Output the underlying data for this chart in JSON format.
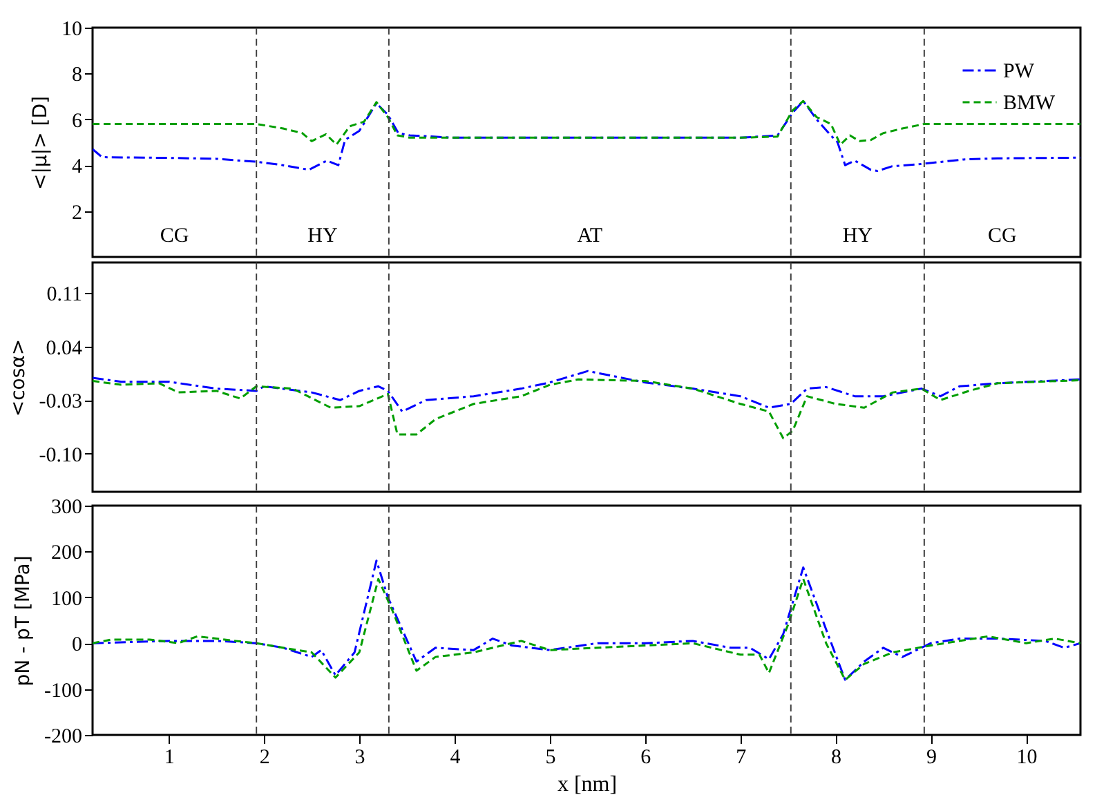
{
  "chart_data": [
    {
      "type": "line",
      "ylabel": "<|μ|> [D]",
      "xlim": [
        0.2,
        10.57
      ],
      "ylim": [
        0,
        10
      ],
      "xticks": [
        1,
        2,
        3,
        4,
        5,
        6,
        7,
        8,
        9,
        10
      ],
      "yticks": [
        2,
        4,
        6,
        8,
        10
      ],
      "tick_labels": "y",
      "grid": false,
      "legend": "top right",
      "series": [
        {
          "name": "PW",
          "color": "#0000ff",
          "line_style": "dashdot",
          "x": [
            0.2,
            0.3,
            1.0,
            1.5,
            1.92,
            2.2,
            2.47,
            2.66,
            2.78,
            2.85,
            3.0,
            3.18,
            3.3,
            3.41,
            3.53,
            4.0,
            5.0,
            6.0,
            7.0,
            7.39,
            7.55,
            7.66,
            7.8,
            7.95,
            8.02,
            8.1,
            8.2,
            8.37,
            8.44,
            8.59,
            8.89,
            9.34,
            9.7,
            10.57
          ],
          "values": [
            4.7,
            4.35,
            4.32,
            4.28,
            4.15,
            4.0,
            3.8,
            4.2,
            4.0,
            5.1,
            5.5,
            6.7,
            6.2,
            5.4,
            5.3,
            5.2,
            5.2,
            5.2,
            5.2,
            5.3,
            6.3,
            6.8,
            6.0,
            5.3,
            5.0,
            4.0,
            4.2,
            3.8,
            3.75,
            3.95,
            4.05,
            4.25,
            4.3,
            4.33
          ]
        },
        {
          "name": "BMW",
          "color": "#009e00",
          "line_style": "dashed",
          "x": [
            0.2,
            1.0,
            1.92,
            2.2,
            2.4,
            2.5,
            2.65,
            2.76,
            2.9,
            3.05,
            3.18,
            3.3,
            3.4,
            3.53,
            4.0,
            5.0,
            6.0,
            7.0,
            7.39,
            7.55,
            7.66,
            7.8,
            7.95,
            8.05,
            8.15,
            8.25,
            8.37,
            8.5,
            8.7,
            8.93,
            10.57
          ],
          "values": [
            5.8,
            5.8,
            5.8,
            5.6,
            5.4,
            5.05,
            5.35,
            4.9,
            5.7,
            5.9,
            6.75,
            6.1,
            5.3,
            5.2,
            5.2,
            5.2,
            5.2,
            5.2,
            5.25,
            6.4,
            6.8,
            6.1,
            5.8,
            4.9,
            5.3,
            5.05,
            5.1,
            5.4,
            5.6,
            5.8,
            5.8
          ]
        }
      ],
      "ref_lines": [
        {
          "axis": "x",
          "value": 1.92,
          "color": "#404040",
          "line_style": "dashed"
        },
        {
          "axis": "x",
          "value": 3.31,
          "color": "#404040",
          "line_style": "dashed"
        },
        {
          "axis": "x",
          "value": 7.53,
          "color": "#404040",
          "line_style": "dashed"
        },
        {
          "axis": "x",
          "value": 8.93,
          "color": "#404040",
          "line_style": "dashed"
        }
      ],
      "annotations": [
        "CG",
        "HY",
        "AT",
        "HY",
        "CG"
      ]
    },
    {
      "type": "line",
      "ylabel": "<cosα>",
      "xlim": [
        0.2,
        10.57
      ],
      "ylim": [
        -0.15,
        0.15
      ],
      "xticks": [
        1,
        2,
        3,
        4,
        5,
        6,
        7,
        8,
        9,
        10
      ],
      "yticks": [
        {
          "value": -0.1,
          "label": "-0.10"
        },
        -0.03,
        0.04,
        0.11
      ],
      "tick_labels": "y",
      "grid": false,
      "series": [
        {
          "color": "#0000ff",
          "line_style": "dashdot",
          "x": [
            0.2,
            0.5,
            1.0,
            1.5,
            1.92,
            2.0,
            2.5,
            2.8,
            3.0,
            3.2,
            3.3,
            3.45,
            3.7,
            4.2,
            4.7,
            5.0,
            5.4,
            6.0,
            6.5,
            7.0,
            7.3,
            7.53,
            7.7,
            7.9,
            8.2,
            8.5,
            8.9,
            9.1,
            9.3,
            9.7,
            10.57
          ],
          "values": [
            -0.001,
            -0.006,
            -0.006,
            -0.015,
            -0.018,
            -0.012,
            -0.02,
            -0.03,
            -0.018,
            -0.012,
            -0.018,
            -0.045,
            -0.03,
            -0.025,
            -0.015,
            -0.007,
            0.008,
            -0.007,
            -0.015,
            -0.025,
            -0.04,
            -0.035,
            -0.015,
            -0.013,
            -0.025,
            -0.025,
            -0.015,
            -0.025,
            -0.012,
            -0.008,
            -0.003
          ]
        },
        {
          "color": "#009e00",
          "line_style": "dashed",
          "x": [
            0.2,
            0.5,
            0.9,
            1.1,
            1.5,
            1.75,
            1.92,
            2.3,
            2.7,
            3.0,
            3.3,
            3.4,
            3.6,
            3.8,
            4.2,
            4.7,
            5.0,
            5.3,
            6.0,
            6.5,
            7.0,
            7.3,
            7.45,
            7.55,
            7.7,
            8.0,
            8.3,
            8.6,
            8.9,
            9.1,
            9.4,
            9.7,
            10.57
          ],
          "values": [
            -0.005,
            -0.01,
            -0.008,
            -0.02,
            -0.018,
            -0.028,
            -0.012,
            -0.015,
            -0.04,
            -0.038,
            -0.022,
            -0.075,
            -0.075,
            -0.055,
            -0.035,
            -0.025,
            -0.01,
            -0.003,
            -0.005,
            -0.015,
            -0.035,
            -0.045,
            -0.08,
            -0.07,
            -0.025,
            -0.035,
            -0.04,
            -0.02,
            -0.015,
            -0.03,
            -0.018,
            -0.008,
            -0.004
          ]
        }
      ],
      "ref_lines": [
        {
          "axis": "x",
          "value": 1.92,
          "color": "#404040",
          "line_style": "dashed"
        },
        {
          "axis": "x",
          "value": 3.31,
          "color": "#404040",
          "line_style": "dashed"
        },
        {
          "axis": "x",
          "value": 7.53,
          "color": "#404040",
          "line_style": "dashed"
        },
        {
          "axis": "x",
          "value": 8.93,
          "color": "#404040",
          "line_style": "dashed"
        }
      ]
    },
    {
      "type": "line",
      "xlabel": "x [nm]",
      "ylabel": "pN - pT [MPa]",
      "xlim": [
        0.2,
        10.57
      ],
      "ylim": [
        -200,
        300
      ],
      "xticks": [
        1,
        2,
        3,
        4,
        5,
        6,
        7,
        8,
        9,
        10
      ],
      "yticks": [
        -200,
        -100,
        0,
        100,
        200,
        300
      ],
      "grid": false,
      "series": [
        {
          "color": "#0000ff",
          "line_style": "dashdot",
          "x": [
            0.2,
            1.0,
            1.5,
            1.92,
            2.2,
            2.5,
            2.6,
            2.75,
            2.95,
            3.18,
            3.3,
            3.6,
            3.8,
            4.2,
            4.4,
            4.6,
            5.0,
            5.5,
            6.0,
            6.5,
            6.9,
            7.1,
            7.3,
            7.45,
            7.66,
            7.9,
            8.1,
            8.3,
            8.5,
            8.7,
            9.0,
            9.3,
            9.7,
            10.2,
            10.4,
            10.57
          ],
          "values": [
            0,
            5,
            5,
            0,
            -10,
            -30,
            -15,
            -70,
            -20,
            180,
            100,
            -40,
            -10,
            -15,
            10,
            -5,
            -15,
            0,
            0,
            5,
            -10,
            -10,
            -35,
            20,
            165,
            30,
            -80,
            -40,
            -10,
            -30,
            0,
            10,
            10,
            5,
            -10,
            0
          ]
        },
        {
          "color": "#009e00",
          "line_style": "dashed",
          "x": [
            0.2,
            0.4,
            0.8,
            1.1,
            1.3,
            1.7,
            1.92,
            2.2,
            2.5,
            2.75,
            3.0,
            3.2,
            3.35,
            3.6,
            3.8,
            4.2,
            4.7,
            5.0,
            6.0,
            6.5,
            7.0,
            7.2,
            7.3,
            7.5,
            7.66,
            7.9,
            8.1,
            8.3,
            8.6,
            9.0,
            9.6,
            10.0,
            10.3,
            10.57
          ],
          "values": [
            0,
            8,
            8,
            0,
            15,
            5,
            0,
            -10,
            -20,
            -75,
            -20,
            140,
            70,
            -60,
            -30,
            -20,
            5,
            -15,
            -5,
            0,
            -25,
            -25,
            -65,
            40,
            140,
            0,
            -80,
            -45,
            -20,
            -5,
            15,
            0,
            10,
            0
          ]
        }
      ],
      "ref_lines": [
        {
          "axis": "x",
          "value": 1.92,
          "color": "#404040",
          "line_style": "dashed"
        },
        {
          "axis": "x",
          "value": 3.31,
          "color": "#404040",
          "line_style": "dashed"
        },
        {
          "axis": "x",
          "value": 7.53,
          "color": "#404040",
          "line_style": "dashed"
        },
        {
          "axis": "x",
          "value": 8.93,
          "color": "#404040",
          "line_style": "dashed"
        }
      ]
    }
  ]
}
